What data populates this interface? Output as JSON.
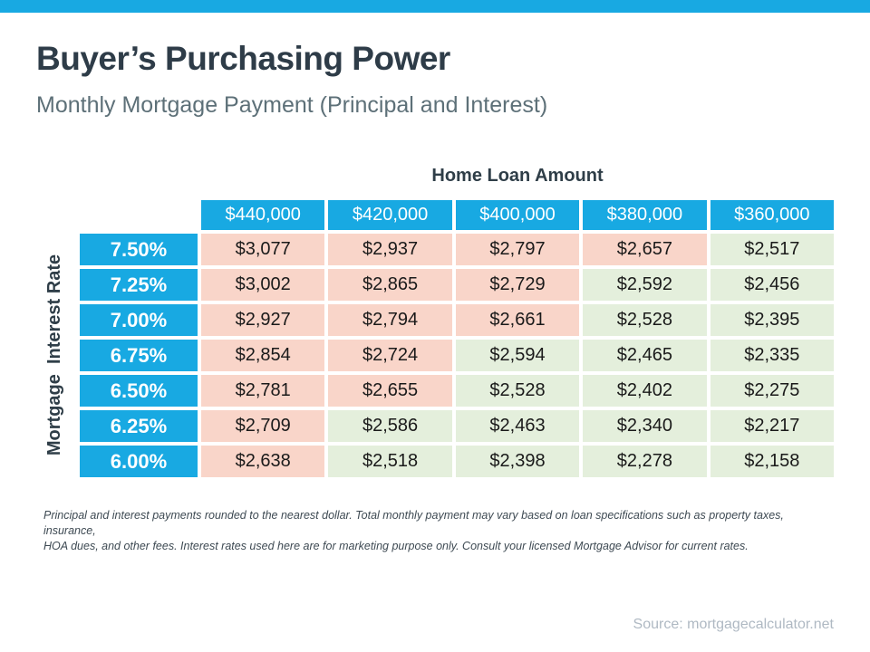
{
  "page": {
    "title": "Buyer’s Purchasing Power",
    "subtitle": "Monthly Mortgage Payment (Principal and Interest)",
    "disclaimer_line1": "Principal and interest payments rounded to the nearest dollar. Total monthly payment may vary based on loan specifications such as property taxes,  insurance,",
    "disclaimer_line2": "HOA dues, and other fees. Interest rates used here are for marketing purpose only. Consult your licensed Mortgage Advisor for current rates.",
    "source": "Source: mortgagecalculator.net"
  },
  "colors": {
    "accent_blue": "#18A9E2",
    "pink": "#F9D5C9",
    "green": "#E4EFDC",
    "title_dark": "#2E3C48",
    "subtitle_slate": "#5D7078",
    "label_dark": "#2F3E48",
    "cell_text": "#1A1A1A",
    "disclaimer_gray": "#3E4A53",
    "source_gray": "#AFB9C3"
  },
  "table": {
    "column_group_label": "Home Loan Amount",
    "row_group_label": "Mortgage  Interest Rate",
    "columns": [
      "$440,000",
      "$420,000",
      "$400,000",
      "$380,000",
      "$360,000"
    ],
    "rows": [
      {
        "rate": "7.50%",
        "values": [
          "$3,077",
          "$2,937",
          "$2,797",
          "$2,657",
          "$2,517"
        ],
        "tones": [
          "pink",
          "pink",
          "pink",
          "pink",
          "green"
        ]
      },
      {
        "rate": "7.25%",
        "values": [
          "$3,002",
          "$2,865",
          "$2,729",
          "$2,592",
          "$2,456"
        ],
        "tones": [
          "pink",
          "pink",
          "pink",
          "green",
          "green"
        ]
      },
      {
        "rate": "7.00%",
        "values": [
          "$2,927",
          "$2,794",
          "$2,661",
          "$2,528",
          "$2,395"
        ],
        "tones": [
          "pink",
          "pink",
          "pink",
          "green",
          "green"
        ]
      },
      {
        "rate": "6.75%",
        "values": [
          "$2,854",
          "$2,724",
          "$2,594",
          "$2,465",
          "$2,335"
        ],
        "tones": [
          "pink",
          "pink",
          "green",
          "green",
          "green"
        ]
      },
      {
        "rate": "6.50%",
        "values": [
          "$2,781",
          "$2,655",
          "$2,528",
          "$2,402",
          "$2,275"
        ],
        "tones": [
          "pink",
          "pink",
          "green",
          "green",
          "green"
        ]
      },
      {
        "rate": "6.25%",
        "values": [
          "$2,709",
          "$2,586",
          "$2,463",
          "$2,340",
          "$2,217"
        ],
        "tones": [
          "pink",
          "green",
          "green",
          "green",
          "green"
        ]
      },
      {
        "rate": "6.00%",
        "values": [
          "$2,638",
          "$2,518",
          "$2,398",
          "$2,278",
          "$2,158"
        ],
        "tones": [
          "pink",
          "green",
          "green",
          "green",
          "green"
        ]
      }
    ]
  },
  "chart_data": {
    "type": "table",
    "title": "Buyer’s Purchasing Power",
    "subtitle": "Monthly Mortgage Payment (Principal and Interest)",
    "column_header": "Home Loan Amount",
    "row_header": "Mortgage Interest Rate",
    "columns": [
      "$440,000",
      "$420,000",
      "$400,000",
      "$380,000",
      "$360,000"
    ],
    "row_labels": [
      "7.50%",
      "7.25%",
      "7.00%",
      "6.75%",
      "6.50%",
      "6.25%",
      "6.00%"
    ],
    "values": [
      [
        3077,
        2937,
        2797,
        2657,
        2517
      ],
      [
        3002,
        2865,
        2729,
        2592,
        2456
      ],
      [
        2927,
        2794,
        2661,
        2528,
        2395
      ],
      [
        2854,
        2724,
        2594,
        2465,
        2335
      ],
      [
        2781,
        2655,
        2528,
        2402,
        2275
      ],
      [
        2709,
        2586,
        2463,
        2340,
        2217
      ],
      [
        2638,
        2518,
        2398,
        2278,
        2158
      ]
    ],
    "cell_color_legend": {
      "pink": "higher payment",
      "green": "lower payment"
    }
  }
}
